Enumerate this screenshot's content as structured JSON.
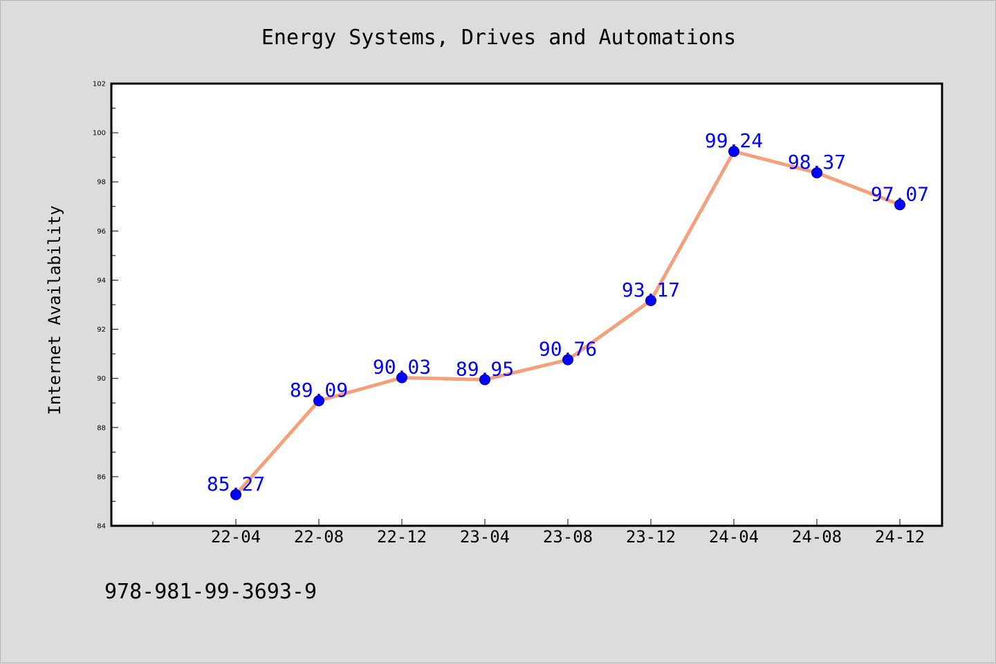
{
  "chart_data": {
    "type": "line",
    "title": "Energy Systems, Drives and Automations",
    "xlabel": "",
    "ylabel": "Internet Availability",
    "categories": [
      "22-04",
      "22-08",
      "22-12",
      "23-04",
      "23-08",
      "23-12",
      "24-04",
      "24-08",
      "24-12"
    ],
    "values": [
      85.27,
      89.09,
      90.03,
      89.95,
      90.76,
      93.17,
      99.24,
      98.37,
      97.07
    ],
    "value_labels": [
      "85.27",
      "89.09",
      "90.03",
      "89.95",
      "90.76",
      "93.17",
      "99.24",
      "98.37",
      "97.07"
    ],
    "ylim": [
      84,
      102
    ],
    "yticks": [
      "84",
      "86",
      "88",
      "90",
      "92",
      "94",
      "96",
      "98",
      "100",
      "102"
    ],
    "grid": false,
    "colors": {
      "line": "#f5a07d",
      "marker": "#0000ff",
      "label": "#0000ff",
      "background": "#dcdcdc",
      "plot_background": "#ffffff"
    }
  },
  "footer": {
    "isbn": "978-981-99-3693-9"
  }
}
